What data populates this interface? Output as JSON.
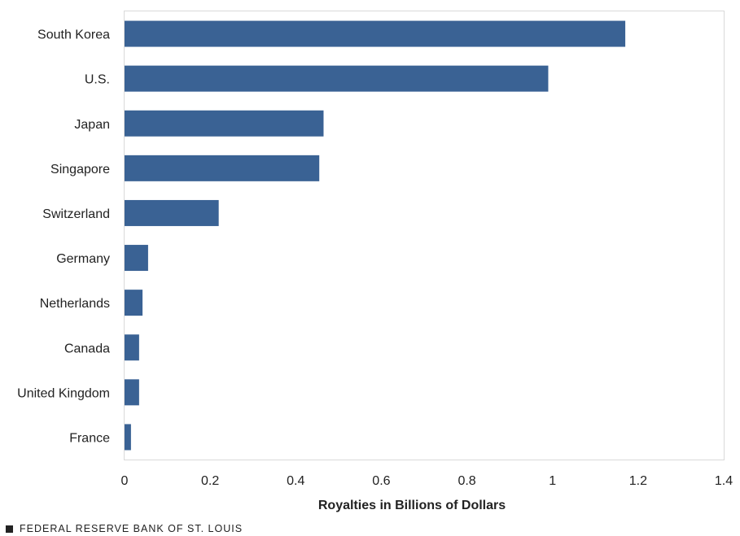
{
  "chart_data": {
    "type": "bar",
    "orientation": "horizontal",
    "categories": [
      "South Korea",
      "U.S.",
      "Japan",
      "Singapore",
      "Switzerland",
      "Germany",
      "Netherlands",
      "Canada",
      "United Kingdom",
      "France"
    ],
    "values": [
      1.17,
      0.99,
      0.465,
      0.455,
      0.22,
      0.055,
      0.042,
      0.034,
      0.034,
      0.015
    ],
    "xlabel": "Royalties in Billions of Dollars",
    "xlim": [
      0,
      1.4
    ],
    "xticks": [
      "0",
      "0.2",
      "0.4",
      "0.6",
      "0.8",
      "1",
      "1.2",
      "1.4"
    ],
    "bar_color": "#3a6294",
    "grid": false
  },
  "footer": {
    "source": "FEDERAL RESERVE BANK OF ST. LOUIS",
    "square_color": "#222222"
  }
}
